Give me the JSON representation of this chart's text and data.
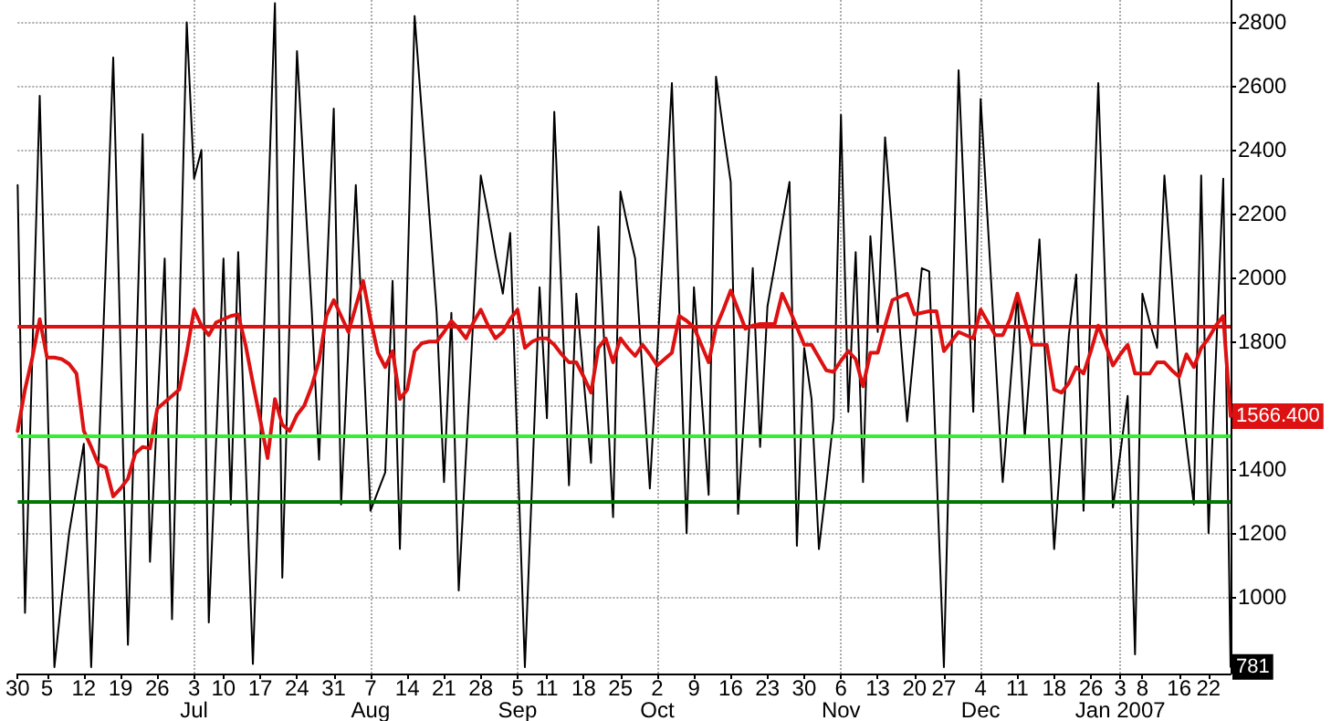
{
  "chart_data": {
    "type": "line",
    "categories": [
      "30",
      null,
      null,
      null,
      "5",
      null,
      null,
      null,
      null,
      "12",
      null,
      null,
      null,
      null,
      "19",
      null,
      null,
      null,
      null,
      "26",
      null,
      null,
      null,
      null,
      "3\nJul",
      null,
      null,
      null,
      "10",
      null,
      null,
      null,
      null,
      "17",
      null,
      null,
      null,
      null,
      "24",
      null,
      null,
      null,
      null,
      "31",
      null,
      null,
      null,
      null,
      "7\nAug",
      null,
      null,
      null,
      null,
      "14",
      null,
      null,
      null,
      null,
      "21",
      null,
      null,
      null,
      null,
      "28",
      null,
      null,
      null,
      null,
      "5\nSep",
      null,
      null,
      null,
      "11",
      null,
      null,
      null,
      null,
      "18",
      null,
      null,
      null,
      null,
      "25",
      null,
      null,
      null,
      null,
      "2\nOct",
      null,
      null,
      null,
      null,
      "9",
      null,
      null,
      null,
      null,
      "16",
      null,
      null,
      null,
      null,
      "23",
      null,
      null,
      null,
      null,
      "30",
      null,
      null,
      null,
      null,
      "6\nNov",
      null,
      null,
      null,
      null,
      "13",
      null,
      null,
      null,
      null,
      "20",
      null,
      null,
      null,
      "27",
      null,
      null,
      null,
      null,
      "4\nDec",
      null,
      null,
      null,
      null,
      "11",
      null,
      null,
      null,
      null,
      "18",
      null,
      null,
      null,
      null,
      "26",
      null,
      null,
      null,
      "3\nJan 2007",
      null,
      null,
      "8",
      null,
      null,
      null,
      null,
      "16",
      null,
      null,
      null,
      "22",
      null,
      null,
      null
    ],
    "series": [
      {
        "color": "#000000",
        "values": [
          2290,
          950,
          1760,
          2570,
          1680,
          780,
          1000,
          1200,
          1340,
          1480,
          780,
          1420,
          2050,
          2690,
          1770,
          850,
          1650,
          2450,
          1110,
          1590,
          2060,
          930,
          1860,
          2800,
          2310,
          2400,
          920,
          1490,
          2060,
          1290,
          2080,
          1430,
          790,
          1480,
          2170,
          2860,
          1060,
          1880,
          2710,
          2300,
          1900,
          1430,
          1980,
          2530,
          1290,
          1790,
          2290,
          1780,
          1270,
          1330,
          1390,
          1990,
          1150,
          1980,
          2820,
          2510,
          2200,
          1890,
          1360,
          1890,
          1020,
          1450,
          1880,
          2320,
          2200,
          2070,
          1950,
          2140,
          1460,
          780,
          1370,
          1970,
          1560,
          2520,
          1940,
          1350,
          1950,
          1680,
          1420,
          2160,
          1700,
          1250,
          2270,
          2160,
          2060,
          1700,
          1340,
          1760,
          2180,
          2610,
          1900,
          1200,
          1970,
          1640,
          1320,
          2630,
          2460,
          2300,
          1260,
          1640,
          2030,
          1470,
          1910,
          2040,
          2170,
          2300,
          1160,
          1780,
          1620,
          1150,
          1350,
          1560,
          2510,
          1580,
          2080,
          1360,
          2130,
          1830,
          2440,
          2140,
          1840,
          1550,
          1790,
          2030,
          2020,
          1400,
          780,
          1720,
          2650,
          2110,
          1580,
          2560,
          2160,
          1760,
          1360,
          1650,
          1950,
          1500,
          1810,
          2120,
          1640,
          1150,
          1480,
          1820,
          2010,
          1270,
          1940,
          2610,
          1940,
          1280,
          1450,
          1630,
          820,
          1950,
          1860,
          1780,
          2320,
          2000,
          1680,
          1480,
          1290,
          2320,
          1200,
          1750,
          2310,
          781
        ],
        "value_labels": [
          null,
          null,
          null,
          null,
          null,
          null,
          null,
          null,
          null,
          null,
          null,
          null,
          null,
          null,
          null,
          null,
          null,
          null,
          null,
          null,
          null,
          null,
          null,
          null,
          null,
          null,
          null,
          null,
          null,
          null,
          null,
          null,
          null,
          null,
          null,
          null,
          null,
          null,
          null,
          null,
          null,
          null,
          null,
          null,
          null,
          null,
          null,
          null,
          null,
          null,
          null,
          null,
          null,
          null,
          null,
          null,
          null,
          null,
          null,
          null,
          null,
          null,
          null,
          null,
          null,
          null,
          null,
          null,
          null,
          null,
          null,
          null,
          null,
          null,
          null,
          null,
          null,
          null,
          null,
          null,
          null,
          null,
          null,
          null,
          null,
          null,
          null,
          null,
          null,
          null,
          null,
          null,
          null,
          null,
          null,
          null,
          null,
          null,
          null,
          null,
          null,
          null,
          null,
          null,
          null,
          null,
          null,
          null,
          null,
          null,
          null,
          null,
          null,
          null,
          null,
          null,
          null,
          null,
          null,
          null,
          null,
          null,
          null,
          null,
          null,
          null,
          null,
          null,
          null,
          null,
          null,
          null,
          null,
          null,
          null,
          null,
          null,
          null,
          null,
          null,
          null,
          null,
          null,
          null,
          null,
          null,
          null,
          null,
          null,
          null,
          null,
          null,
          null,
          null,
          null,
          null,
          null,
          null,
          null,
          null,
          null,
          null,
          null,
          null,
          null,
          "781"
        ]
      },
      {
        "color": "#dd1111",
        "values": [
          1520,
          1650,
          1750,
          1870,
          1750,
          1750,
          1745,
          1730,
          1700,
          1520,
          1470,
          1415,
          1405,
          1315,
          1340,
          1370,
          1450,
          1470,
          1465,
          1590,
          1610,
          1630,
          1650,
          1765,
          1900,
          1850,
          1820,
          1860,
          1870,
          1880,
          1885,
          1790,
          1670,
          1555,
          1435,
          1620,
          1540,
          1520,
          1570,
          1600,
          1660,
          1740,
          1880,
          1930,
          1880,
          1830,
          1910,
          1990,
          1870,
          1765,
          1720,
          1770,
          1620,
          1650,
          1770,
          1795,
          1800,
          1800,
          1830,
          1865,
          1840,
          1810,
          1860,
          1900,
          1850,
          1810,
          1830,
          1870,
          1900,
          1780,
          1800,
          1810,
          1810,
          1790,
          1760,
          1735,
          1735,
          1690,
          1640,
          1780,
          1810,
          1735,
          1810,
          1780,
          1755,
          1790,
          1760,
          1725,
          1745,
          1765,
          1880,
          1865,
          1845,
          1790,
          1735,
          1845,
          1900,
          1960,
          1900,
          1840,
          1850,
          1855,
          1855,
          1856,
          1950,
          1900,
          1845,
          1790,
          1790,
          1750,
          1710,
          1705,
          1740,
          1770,
          1745,
          1660,
          1765,
          1765,
          1850,
          1930,
          1940,
          1950,
          1885,
          1890,
          1895,
          1895,
          1770,
          1800,
          1830,
          1820,
          1810,
          1900,
          1860,
          1820,
          1820,
          1870,
          1950,
          1870,
          1790,
          1790,
          1790,
          1650,
          1640,
          1670,
          1720,
          1700,
          1770,
          1850,
          1790,
          1725,
          1760,
          1790,
          1700,
          1700,
          1700,
          1735,
          1735,
          1710,
          1690,
          1760,
          1720,
          1780,
          1810,
          1850,
          1880,
          1566.4
        ],
        "value_labels": [
          null,
          null,
          null,
          null,
          null,
          null,
          null,
          null,
          null,
          null,
          null,
          null,
          null,
          null,
          null,
          null,
          null,
          null,
          null,
          null,
          null,
          null,
          null,
          null,
          null,
          null,
          null,
          null,
          null,
          null,
          null,
          null,
          null,
          null,
          null,
          null,
          null,
          null,
          null,
          null,
          null,
          null,
          null,
          null,
          null,
          null,
          null,
          null,
          null,
          null,
          null,
          null,
          null,
          null,
          null,
          null,
          null,
          null,
          null,
          null,
          null,
          null,
          null,
          null,
          null,
          null,
          null,
          null,
          null,
          null,
          null,
          null,
          null,
          null,
          null,
          null,
          null,
          null,
          null,
          null,
          null,
          null,
          null,
          null,
          null,
          null,
          null,
          null,
          null,
          null,
          null,
          null,
          null,
          null,
          null,
          null,
          null,
          null,
          null,
          null,
          null,
          null,
          null,
          null,
          null,
          null,
          null,
          null,
          null,
          null,
          null,
          null,
          null,
          null,
          null,
          null,
          null,
          null,
          null,
          null,
          null,
          null,
          null,
          null,
          null,
          null,
          null,
          null,
          null,
          null,
          null,
          null,
          null,
          null,
          null,
          null,
          null,
          null,
          null,
          null,
          null,
          null,
          null,
          null,
          null,
          null,
          null,
          null,
          null,
          null,
          null,
          null,
          null,
          null,
          null,
          null,
          null,
          null,
          null,
          null,
          null,
          null,
          null,
          null,
          null,
          "1566.400"
        ]
      }
    ],
    "ylim": [
      760,
      2870
    ],
    "yticks": [
      1000,
      1200,
      1400,
      {
        "value": 1600,
        "label": null
      },
      1800,
      2000,
      2200,
      2400,
      2600,
      2800
    ],
    "ref_lines": [
      {
        "axis": "y",
        "value": 1850,
        "color": "#dd1111"
      },
      {
        "axis": "y",
        "value": 1505,
        "color": "#33ee33"
      },
      {
        "axis": "y",
        "value": 1300,
        "color": "#007700"
      }
    ],
    "grid": true,
    "marker": "none",
    "line_style": "solid"
  }
}
